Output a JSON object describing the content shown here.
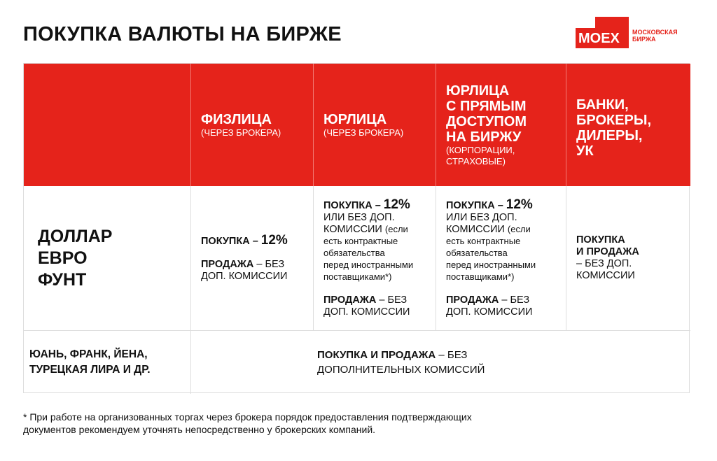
{
  "title": "ПОКУПКА ВАЛЮТЫ НА БИРЖЕ",
  "logo": {
    "mark": "MOEX",
    "text": "МОСКОВСКАЯ\nБИРЖА"
  },
  "headers": [
    {
      "title": "",
      "sub": ""
    },
    {
      "title": "ФИЗЛИЦА",
      "sub": "(ЧЕРЕЗ БРОКЕРА)"
    },
    {
      "title": "ЮРЛИЦА",
      "sub": "(ЧЕРЕЗ БРОКЕРА)"
    },
    {
      "title": "ЮРЛИЦА\nС ПРЯМЫМ\nДОСТУПОМ\nНА БИРЖУ",
      "sub": "(КОРПОРАЦИИ,\nСТРАХОВЫЕ)"
    },
    {
      "title": "БАНКИ,\nБРОКЕРЫ,\nДИЛЕРЫ,\nУК",
      "sub": ""
    }
  ],
  "row1": {
    "label": "ДОЛЛАР\nЕВРО\nФУНТ",
    "individuals": {
      "buy_label": "ПОКУПКА – ",
      "buy_value": "12%",
      "sell_label": "ПРОДАЖА",
      "sell_text": " – БЕЗ\nДОП. КОМИССИИ"
    },
    "legal": {
      "buy_label": "ПОКУПКА – ",
      "buy_value": "12%",
      "buy_alt": "\nИЛИ БЕЗ ДОП.\nКОМИССИИ ",
      "buy_note": "(если\nесть контрактные\nобязательства\nперед иностранными\nпоставщиками*)",
      "sell_label": "ПРОДАЖА",
      "sell_text": " – БЕЗ\nДОП. КОМИССИИ"
    },
    "legal_direct": {
      "buy_label": "ПОКУПКА – ",
      "buy_value": "12%",
      "buy_alt": "\nИЛИ БЕЗ ДОП.\nКОМИССИИ ",
      "buy_note": "(если\nесть контрактные\nобязательства\nперед иностранными\nпоставщиками*)",
      "sell_label": "ПРОДАЖА",
      "sell_text": " – БЕЗ\nДОП. КОМИССИИ"
    },
    "banks": {
      "label": "ПОКУПКА\nИ ПРОДАЖА",
      "text": "\n– БЕЗ ДОП.\nКОМИССИИ"
    }
  },
  "row2": {
    "label": "ЮАНЬ, ФРАНК, ЙЕНА,\nТУРЕЦКАЯ ЛИРА И ДР.",
    "bold": "ПОКУПКА И ПРОДАЖА",
    "text": " – БЕЗ\nДОПОЛНИТЕЛЬНЫХ КОМИССИЙ"
  },
  "footnote": "* При работе на организованных торгах через брокера порядок предоставления подтверждающих\nдокументов рекомендуем уточнять непосредственно у брокерских компаний."
}
